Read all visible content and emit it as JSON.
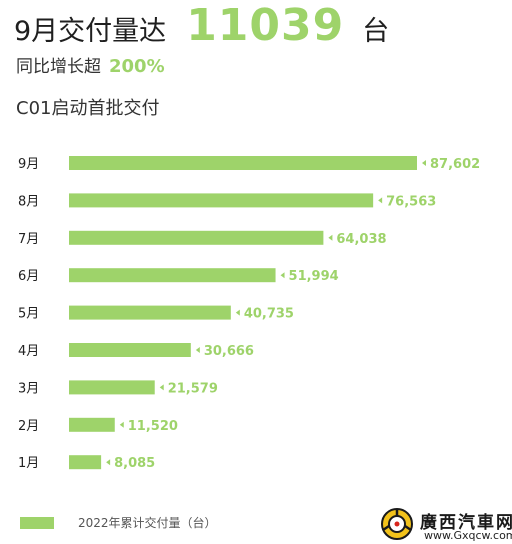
{
  "headline": {
    "prefix": "9月交付量达",
    "number": "11039",
    "suffix": "台"
  },
  "subline": {
    "prefix": "同比增长超",
    "value": "200%"
  },
  "thirdline": "C01启动首批交付",
  "colors": {
    "bar": "#9ed36a",
    "label": "#9ed36a",
    "text": "#222222"
  },
  "chart_data": {
    "type": "bar",
    "orientation": "horizontal",
    "categories": [
      "9月",
      "8月",
      "7月",
      "6月",
      "5月",
      "4月",
      "3月",
      "2月",
      "1月"
    ],
    "values": [
      87602,
      76563,
      64038,
      51994,
      40735,
      30666,
      21579,
      11520,
      8085
    ],
    "value_labels": [
      "87,602",
      "76,563",
      "64,038",
      "51,994",
      "40,735",
      "30,666",
      "21,579",
      "11,520",
      "8,085"
    ],
    "series": [
      {
        "name": "2022年累计交付量（台）"
      }
    ],
    "xlim": [
      0,
      87602
    ],
    "grid": false,
    "legend_position": "bottom-left"
  },
  "legend": {
    "label": "2022年累计交付量（台）"
  },
  "watermark": {
    "name": "廣西汽車网",
    "url": "www.Gxqcw.com"
  }
}
